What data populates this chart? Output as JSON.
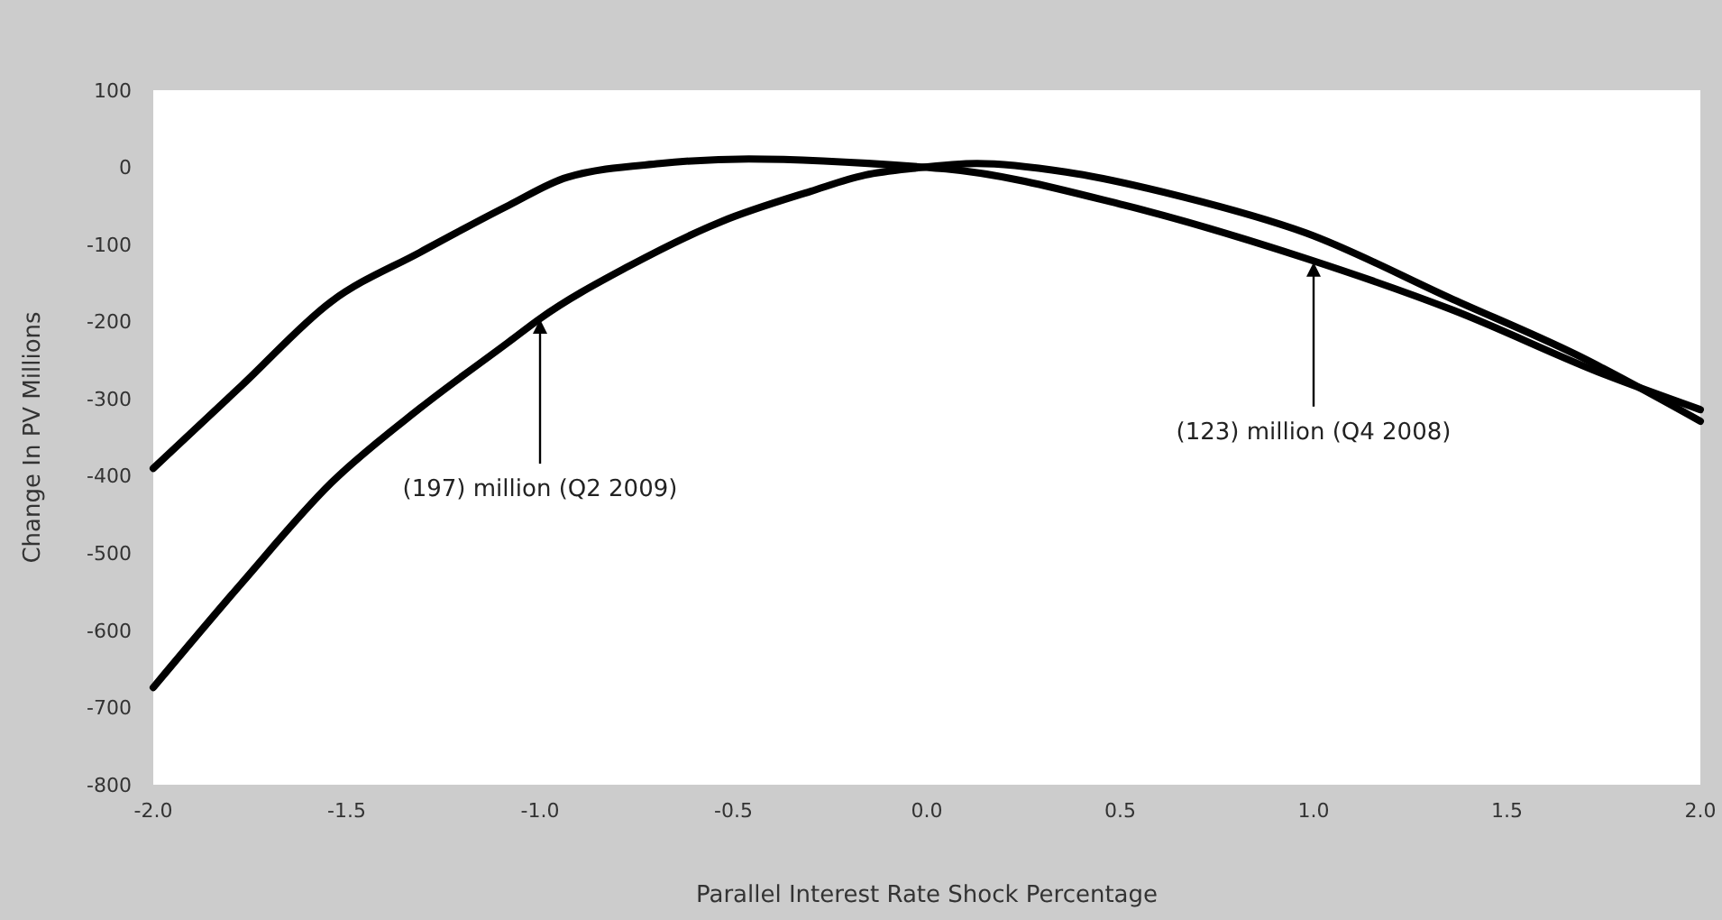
{
  "chart_data": {
    "type": "line",
    "xlabel": "Parallel Interest Rate Shock Percentage",
    "ylabel": "Change In PV Millions",
    "xlim": [
      -2.0,
      2.0
    ],
    "xticks": [
      {
        "value": -2,
        "label": "-2.0"
      },
      {
        "value": -1.5,
        "label": "-1.5"
      },
      {
        "value": -1,
        "label": "-1.0"
      },
      {
        "value": -0.5,
        "label": "-0.5"
      },
      {
        "value": 0,
        "label": "0.0"
      },
      {
        "value": 0.5,
        "label": "0.5"
      },
      {
        "value": 1,
        "label": "1.0"
      },
      {
        "value": 1.5,
        "label": "1.5"
      },
      {
        "value": 2,
        "label": "2.0"
      }
    ],
    "ylim": [
      -800,
      100
    ],
    "yticks": [
      -800,
      -700,
      -600,
      -500,
      -400,
      -300,
      -200,
      -100,
      0,
      100
    ],
    "series": [
      {
        "color": "#000000",
        "x": [
          -2.0,
          -1.77,
          -1.54,
          -1.31,
          -1.08,
          -0.93,
          -0.69,
          -0.46,
          0.0,
          0.05,
          0.51,
          0.98,
          1.36,
          1.75,
          2.0
        ],
        "values": [
          -390,
          -282,
          -174,
          -110,
          -49,
          -13,
          5,
          11,
          0,
          -2,
          -49,
          -118,
          -185,
          -268,
          -314
        ]
      },
      {
        "color": "#000000",
        "x": [
          -2.0,
          -1.77,
          -1.54,
          -1.31,
          -1.08,
          -1.0,
          -0.77,
          -0.53,
          -0.3,
          -0.16,
          -0.03,
          0.13,
          0.36,
          0.66,
          0.98,
          1.36,
          1.68,
          2.0
        ],
        "values": [
          -674,
          -538,
          -409,
          -312,
          -226,
          -196,
          -128,
          -70,
          -31,
          -10,
          -1,
          5,
          -6,
          -38,
          -85,
          -171,
          -243,
          -329
        ]
      }
    ],
    "annotations": [
      {
        "text": "(197) million (Q2 2009)",
        "x": -1.0,
        "y": -197
      },
      {
        "text": "(123) million (Q4 2008)",
        "x": 1.0,
        "y": -123
      }
    ]
  }
}
